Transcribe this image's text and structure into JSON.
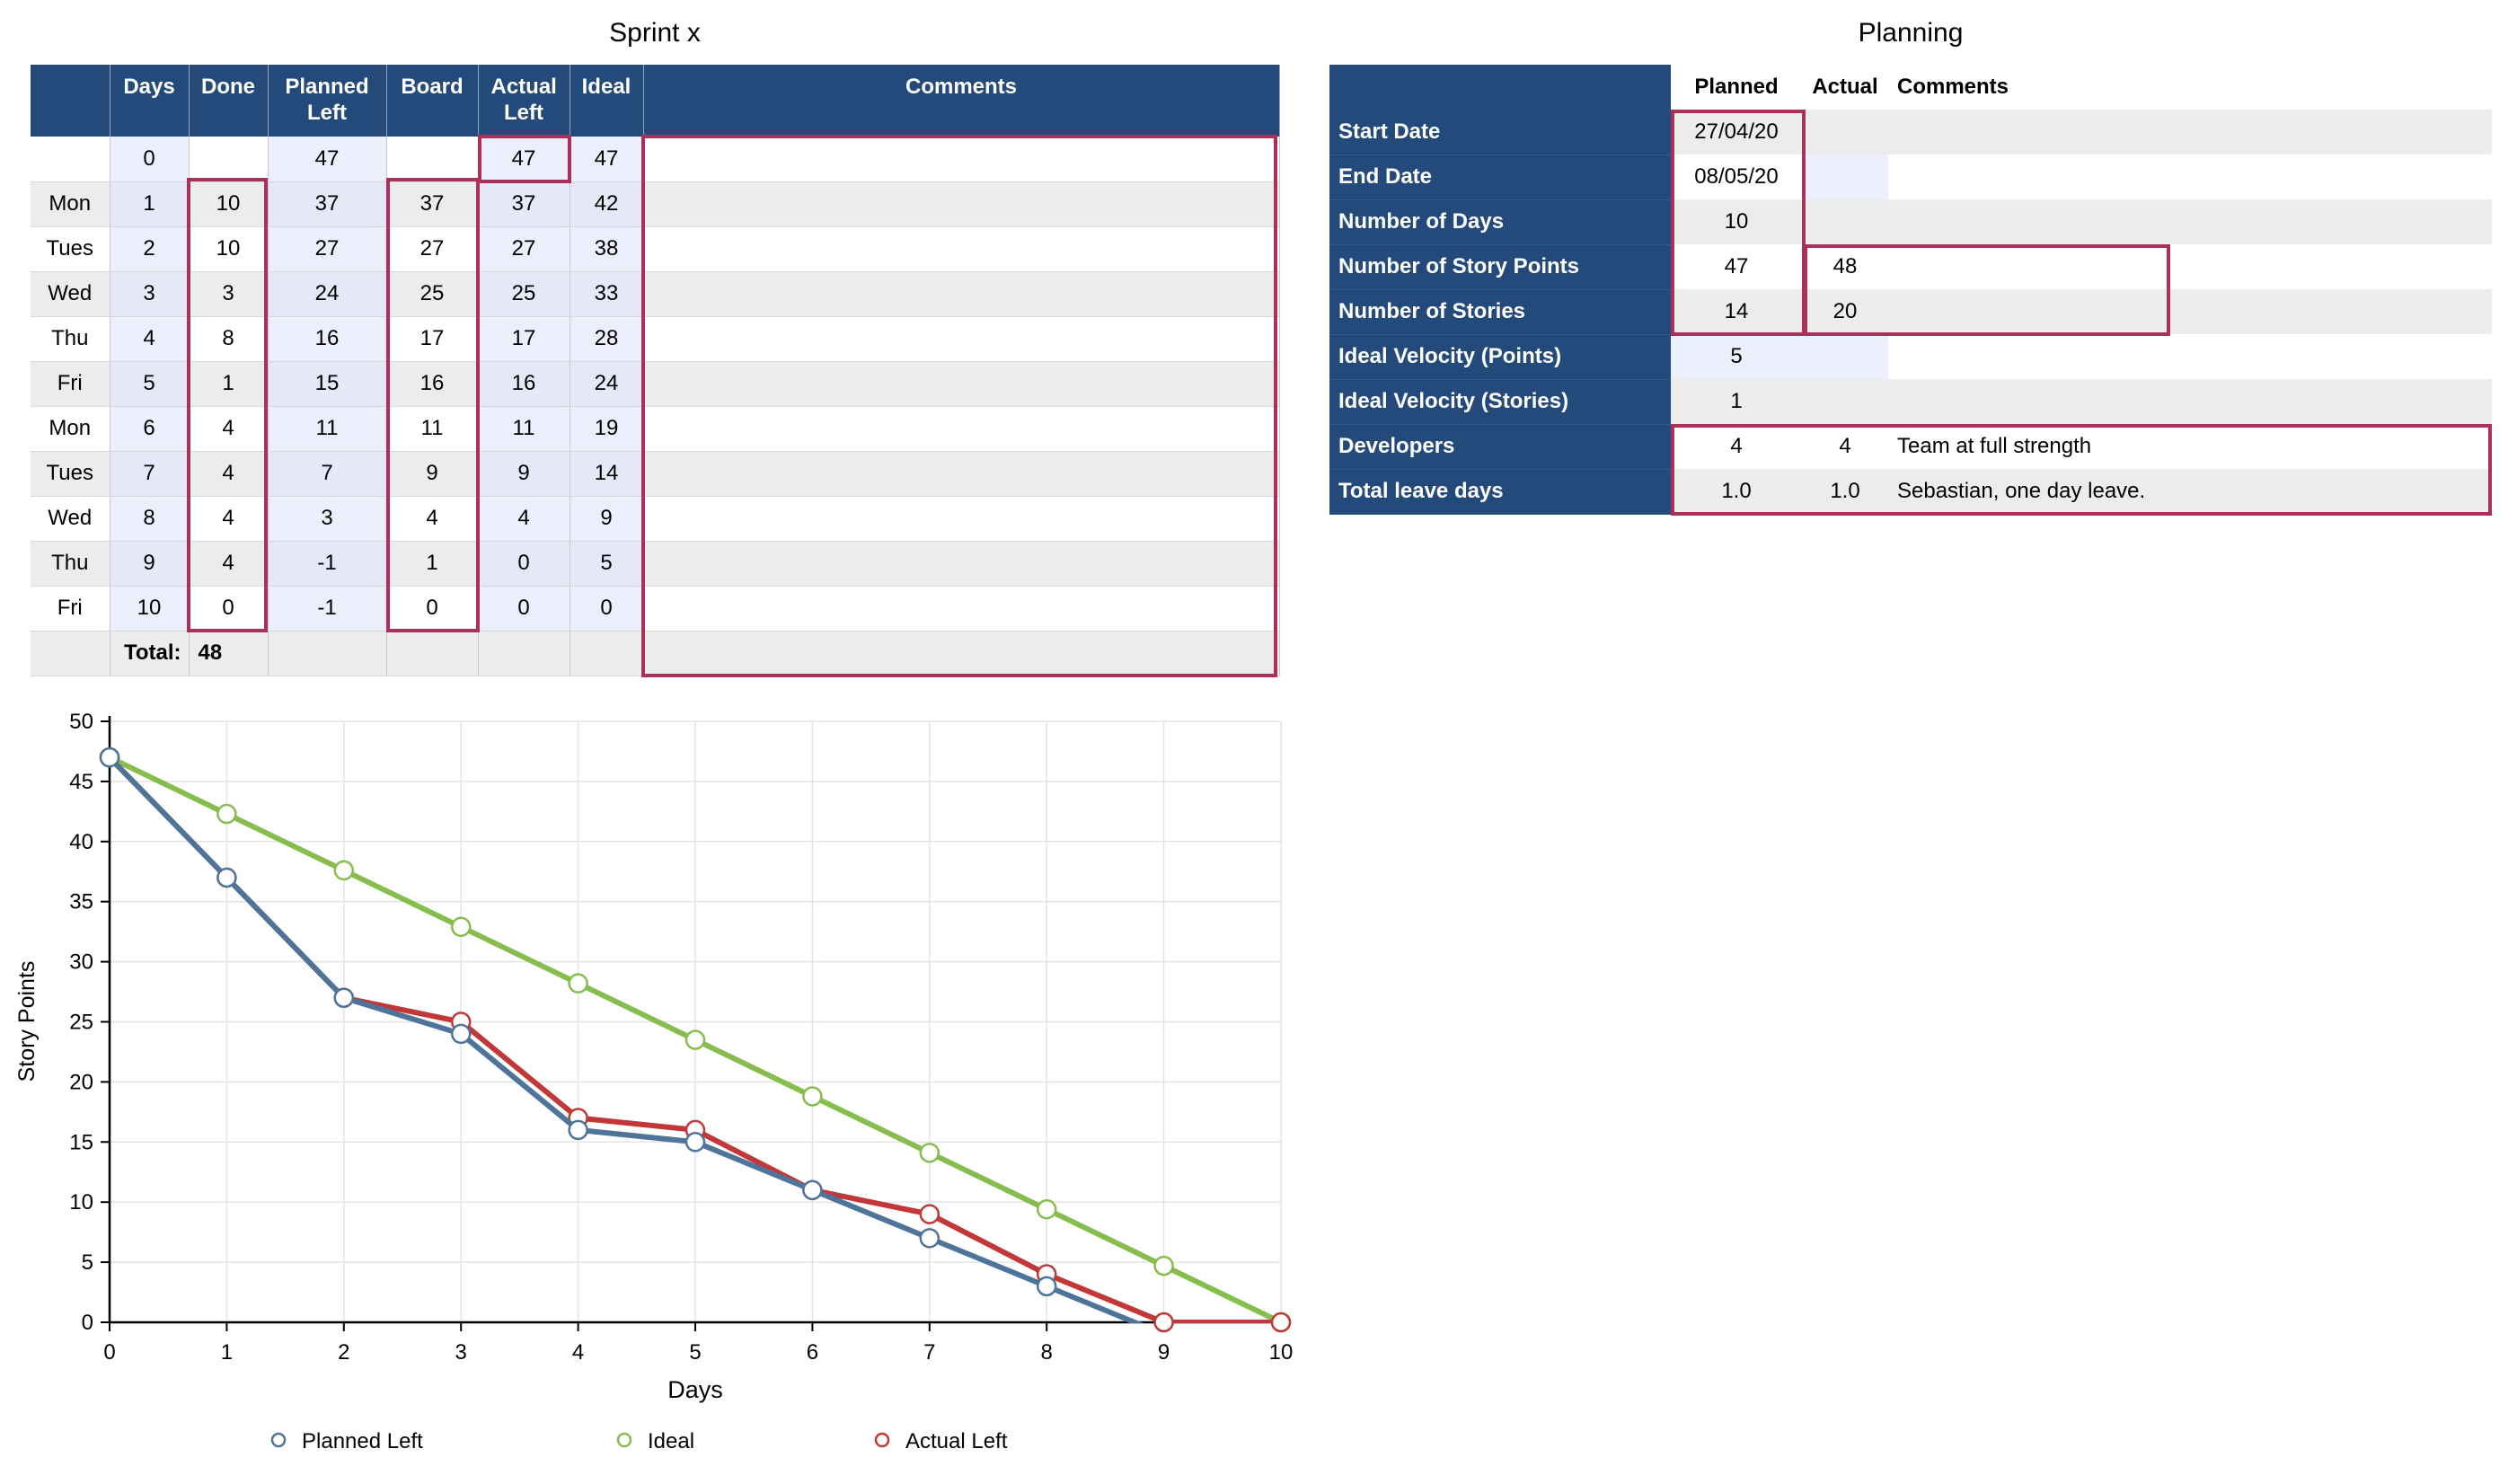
{
  "sprint": {
    "title": "Sprint x",
    "headers": [
      "",
      "Days",
      "Done",
      "Planned Left",
      "Board",
      "Actual Left",
      "Ideal",
      "Comments"
    ],
    "rows": [
      [
        "",
        "0",
        "",
        "47",
        "",
        "47",
        "47",
        ""
      ],
      [
        "Mon",
        "1",
        "10",
        "37",
        "37",
        "37",
        "42",
        ""
      ],
      [
        "Tues",
        "2",
        "10",
        "27",
        "27",
        "27",
        "38",
        ""
      ],
      [
        "Wed",
        "3",
        "3",
        "24",
        "25",
        "25",
        "33",
        ""
      ],
      [
        "Thu",
        "4",
        "8",
        "16",
        "17",
        "17",
        "28",
        ""
      ],
      [
        "Fri",
        "5",
        "1",
        "15",
        "16",
        "16",
        "24",
        ""
      ],
      [
        "Mon",
        "6",
        "4",
        "11",
        "11",
        "11",
        "19",
        ""
      ],
      [
        "Tues",
        "7",
        "4",
        "7",
        "9",
        "9",
        "14",
        ""
      ],
      [
        "Wed",
        "8",
        "4",
        "3",
        "4",
        "4",
        "9",
        ""
      ],
      [
        "Thu",
        "9",
        "4",
        "-1",
        "1",
        "0",
        "5",
        ""
      ],
      [
        "Fri",
        "10",
        "0",
        "-1",
        "0",
        "0",
        "0",
        ""
      ]
    ],
    "total_label": "Total:",
    "total_value": "48"
  },
  "planning": {
    "title": "Planning",
    "headers": [
      "",
      "Planned",
      "Actual",
      "Comments"
    ],
    "rows": [
      {
        "label": "Start Date",
        "planned": "27/04/20",
        "actual": "",
        "comment": ""
      },
      {
        "label": "End Date",
        "planned": "08/05/20",
        "actual": "",
        "comment": ""
      },
      {
        "label": "Number of Days",
        "planned": "10",
        "actual": "",
        "comment": ""
      },
      {
        "label": "Number of Story Points",
        "planned": "47",
        "actual": "48",
        "comment": ""
      },
      {
        "label": "Number of Stories",
        "planned": "14",
        "actual": "20",
        "comment": ""
      },
      {
        "label": "Ideal Velocity (Points)",
        "planned": "5",
        "actual": "",
        "comment": ""
      },
      {
        "label": "Ideal Velocity (Stories)",
        "planned": "1",
        "actual": "",
        "comment": ""
      },
      {
        "label": "Developers",
        "planned": "4",
        "actual": "4",
        "comment": "Team at full strength"
      },
      {
        "label": "Total leave days",
        "planned": "1.0",
        "actual": "1.0",
        "comment": "Sebastian, one day leave."
      }
    ]
  },
  "colors": {
    "header_bg": "#234a7a",
    "highlight": "#a8305a",
    "planned": "#4f7499",
    "ideal": "#86bd4e",
    "actual": "#c23838"
  },
  "chart_data": {
    "type": "line",
    "xlabel": "Days",
    "ylabel": "Story Points",
    "xlim": [
      0,
      10
    ],
    "ylim": [
      0,
      50
    ],
    "xticks": [
      "0",
      "1",
      "2",
      "3",
      "4",
      "5",
      "6",
      "7",
      "8",
      "9",
      "10"
    ],
    "yticks": [
      "0",
      "5",
      "10",
      "15",
      "20",
      "25",
      "30",
      "35",
      "40",
      "45",
      "50"
    ],
    "grid": true,
    "legend_position": "bottom",
    "series": [
      {
        "name": "Planned Left",
        "color": "#4f7499",
        "x": [
          0,
          1,
          2,
          3,
          4,
          5,
          6,
          7,
          8,
          9,
          10
        ],
        "values": [
          47,
          37,
          27,
          24,
          16,
          15,
          11,
          7,
          3,
          -1,
          -1
        ]
      },
      {
        "name": "Ideal",
        "color": "#86bd4e",
        "x": [
          0,
          1,
          2,
          3,
          4,
          5,
          6,
          7,
          8,
          9,
          10
        ],
        "values": [
          47,
          42.3,
          37.6,
          32.9,
          28.2,
          23.5,
          18.8,
          14.1,
          9.4,
          4.7,
          0
        ]
      },
      {
        "name": "Actual Left",
        "color": "#c23838",
        "x": [
          0,
          1,
          2,
          3,
          4,
          5,
          6,
          7,
          8,
          9,
          10
        ],
        "values": [
          47,
          37,
          27,
          25,
          17,
          16,
          11,
          9,
          4,
          0,
          0
        ]
      }
    ]
  }
}
